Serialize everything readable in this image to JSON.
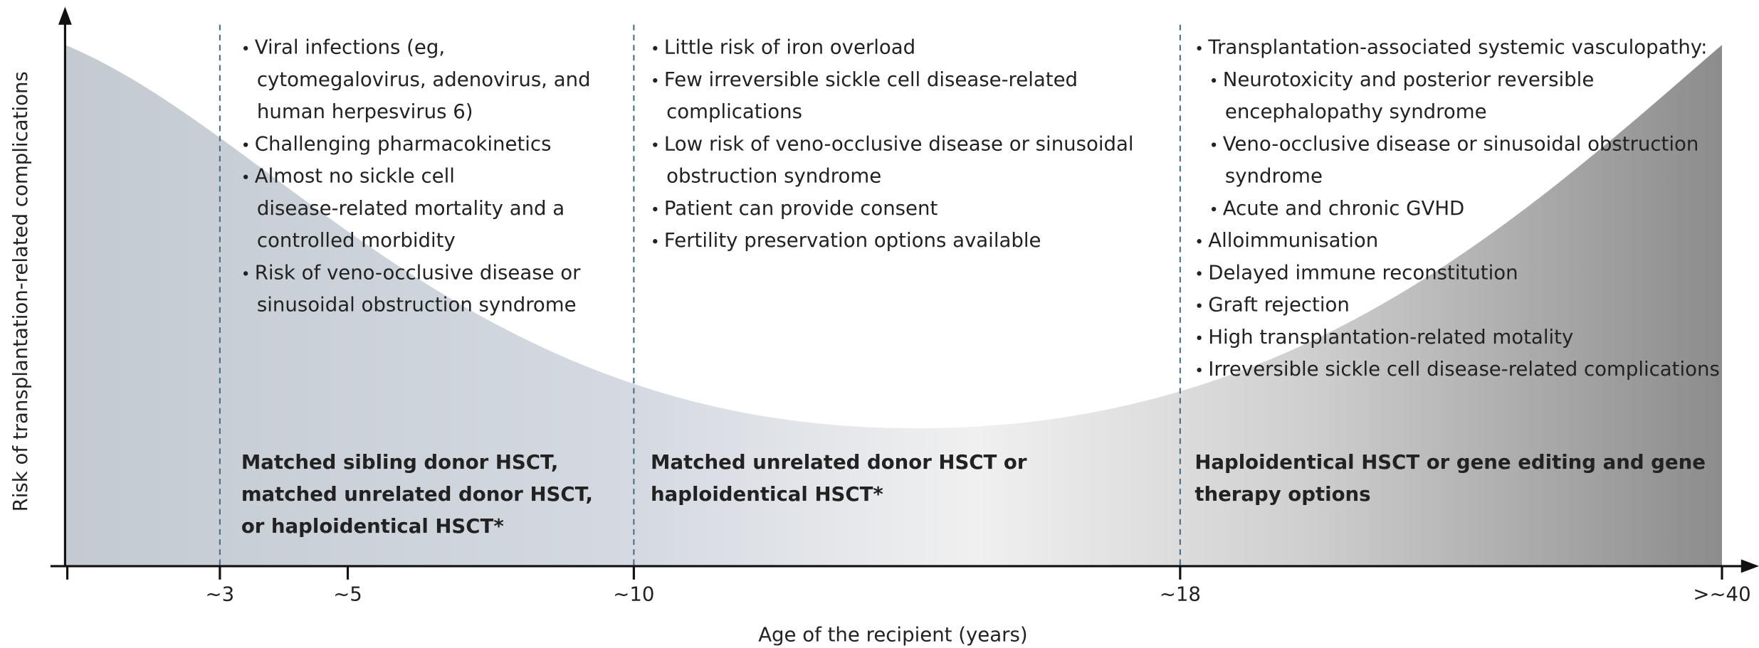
{
  "axes": {
    "y_label": "Risk of transplantation-related complications",
    "x_label": "Age of the recipient (years)",
    "x_ticks": [
      "~3",
      "~5",
      "~10",
      "~18",
      ">~40"
    ]
  },
  "columns": [
    {
      "bullets": [
        [
          "Viral infections (eg,",
          "cytomegalovirus, adenovirus, and",
          "human herpesvirus 6)"
        ],
        [
          "Challenging pharmacokinetics"
        ],
        [
          "Almost no sickle cell",
          "disease-related mortality and a",
          "controlled morbidity"
        ],
        [
          "Risk of veno-occlusive disease or",
          "sinusoidal obstruction syndrome"
        ]
      ],
      "recommendation": [
        "Matched sibling donor HSCT,",
        "matched unrelated donor HSCT,",
        "or haploidentical HSCT*"
      ]
    },
    {
      "bullets": [
        [
          "Little risk of iron overload"
        ],
        [
          "Few irreversible sickle cell disease-related",
          "complications"
        ],
        [
          "Low risk of veno-occlusive disease or sinusoidal",
          "obstruction syndrome"
        ],
        [
          "Patient can provide consent"
        ],
        [
          "Fertility preservation options available"
        ]
      ],
      "recommendation": [
        "Matched unrelated donor HSCT or",
        "haploidentical HSCT*"
      ]
    },
    {
      "bullets": [
        [
          "Transplantation-associated systemic vasculopathy:"
        ],
        [
          "Neurotoxicity and posterior reversible",
          "encephalopathy syndrome"
        ],
        [
          "Veno-occlusive disease or sinusoidal obstruction",
          "syndrome"
        ],
        [
          "Acute and chronic GVHD"
        ],
        [
          "Alloimmunisation"
        ],
        [
          "Delayed immune reconstitution"
        ],
        [
          "Graft rejection"
        ],
        [
          "High transplantation-related motality"
        ],
        [
          "Irreversible sickle cell disease-related complications"
        ]
      ],
      "recommendation": [
        "Haploidentical HSCT or gene editing and gene",
        "therapy options"
      ]
    }
  ]
}
